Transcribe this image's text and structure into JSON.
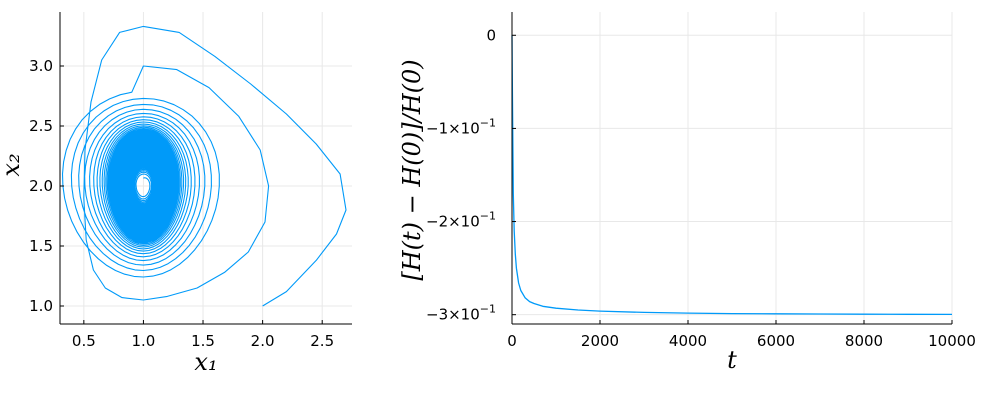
{
  "colors": {
    "series": "#009af9",
    "grid": "#e8e8e8",
    "axis": "#000000"
  },
  "chart_data": [
    {
      "type": "line",
      "title": "",
      "xlabel": "x₁",
      "ylabel": "x₂",
      "xlim": [
        0.3,
        2.75
      ],
      "ylim": [
        0.85,
        3.45
      ],
      "grid": true,
      "legend": "none",
      "xticks": [
        0.5,
        1.0,
        1.5,
        2.0,
        2.5
      ],
      "xtick_labels": [
        "0.5",
        "1.0",
        "1.5",
        "2.0",
        "2.5"
      ],
      "yticks": [
        1.0,
        1.5,
        2.0,
        2.5,
        3.0
      ],
      "ytick_labels": [
        "1.0",
        "1.5",
        "2.0",
        "2.5",
        "3.0"
      ],
      "series": [
        {
          "description": "phase-space trajectory spiralling inward from (2, 1) toward the equilibrium near (1, 2)",
          "start": [
            2.0,
            1.0
          ],
          "center": [
            1.0,
            2.0
          ],
          "first_loop": [
            [
              2.0,
              1.0
            ],
            [
              2.2,
              1.12
            ],
            [
              2.45,
              1.38
            ],
            [
              2.62,
              1.6
            ],
            [
              2.7,
              1.8
            ],
            [
              2.65,
              2.1
            ],
            [
              2.45,
              2.35
            ],
            [
              2.2,
              2.6
            ],
            [
              1.9,
              2.85
            ],
            [
              1.6,
              3.08
            ],
            [
              1.3,
              3.28
            ],
            [
              1.0,
              3.33
            ],
            [
              0.8,
              3.28
            ],
            [
              0.65,
              3.05
            ],
            [
              0.56,
              2.7
            ],
            [
              0.51,
              2.3
            ],
            [
              0.5,
              1.9
            ],
            [
              0.52,
              1.55
            ],
            [
              0.58,
              1.3
            ],
            [
              0.68,
              1.15
            ],
            [
              0.82,
              1.07
            ],
            [
              1.0,
              1.05
            ],
            [
              1.2,
              1.08
            ],
            [
              1.45,
              1.15
            ],
            [
              1.68,
              1.28
            ],
            [
              1.88,
              1.45
            ],
            [
              2.02,
              1.7
            ],
            [
              2.05,
              2.0
            ],
            [
              1.98,
              2.3
            ],
            [
              1.8,
              2.58
            ],
            [
              1.55,
              2.82
            ],
            [
              1.28,
              2.97
            ],
            [
              1.0,
              3.0
            ]
          ],
          "limit_ellipse": {
            "rx": 0.44,
            "ry": 0.66
          },
          "loops_after_first": 90,
          "equilibrium_hole": {
            "rx": 0.045,
            "ry": 0.065
          }
        }
      ]
    },
    {
      "type": "line",
      "title": "",
      "xlabel": "t",
      "ylabel": "[H(t) − H(0)]/H(0)",
      "xlim": [
        0,
        10000
      ],
      "ylim": [
        -0.31,
        0.025
      ],
      "grid": true,
      "legend": "none",
      "xticks": [
        0,
        2000,
        4000,
        6000,
        8000,
        10000
      ],
      "xtick_labels": [
        "0",
        "2000",
        "4000",
        "6000",
        "8000",
        "10000"
      ],
      "yticks": [
        0,
        -0.1,
        -0.2,
        -0.3
      ],
      "ytick_labels": [
        "0",
        "−1×10",
        "−2×10",
        "−3×10"
      ],
      "ytick_exponent": "−1",
      "series": [
        {
          "x": [
            0,
            10,
            20,
            30,
            50,
            75,
            100,
            150,
            200,
            300,
            400,
            500,
            700,
            1000,
            1500,
            2000,
            3000,
            4000,
            5000,
            6000,
            7000,
            8000,
            9000,
            10000
          ],
          "y": [
            0,
            -0.06,
            -0.12,
            -0.17,
            -0.21,
            -0.235,
            -0.25,
            -0.266,
            -0.274,
            -0.282,
            -0.286,
            -0.288,
            -0.291,
            -0.293,
            -0.295,
            -0.2962,
            -0.2975,
            -0.2983,
            -0.2988,
            -0.2991,
            -0.2993,
            -0.2995,
            -0.2996,
            -0.2997
          ]
        }
      ]
    }
  ]
}
